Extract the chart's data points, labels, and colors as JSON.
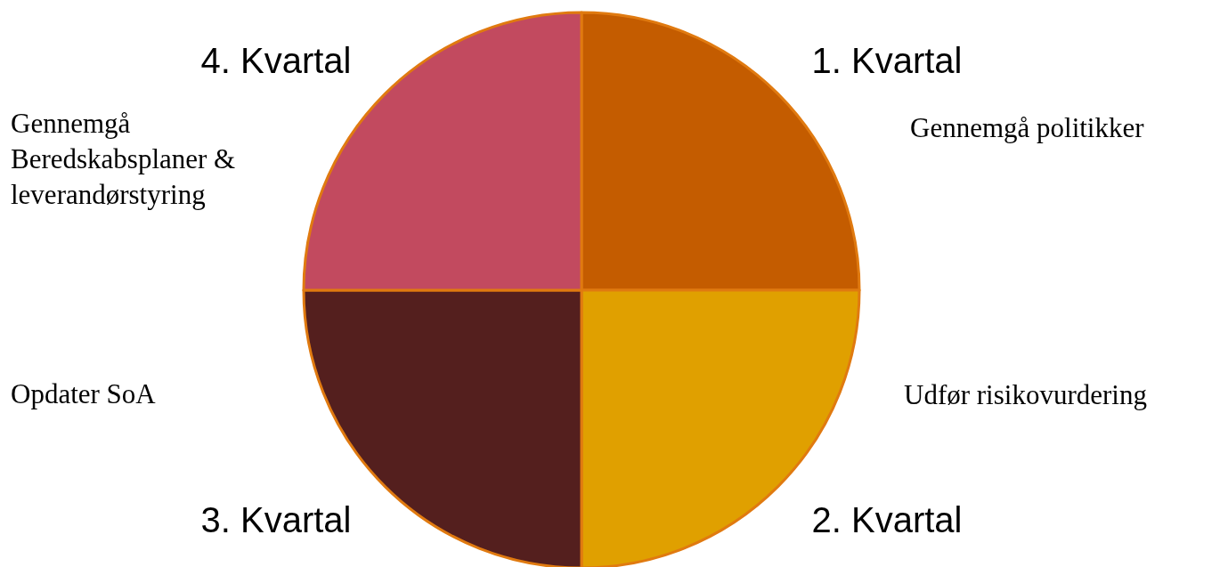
{
  "chart_data": {
    "type": "pie",
    "categories": [
      "1. Kvartal",
      "2. Kvartal",
      "3. Kvartal",
      "4. Kvartal"
    ],
    "values": [
      25,
      25,
      25,
      25
    ],
    "colors": [
      "#c45c00",
      "#e0a000",
      "#541f1e",
      "#c24a5f"
    ],
    "annotations": [
      "Gennemgå politikker",
      "Udfør risikovurdering",
      "Opdater SoA",
      "Gennemgå\nBeredskabsplaner &\nleverandørstyring"
    ],
    "legend": false
  }
}
